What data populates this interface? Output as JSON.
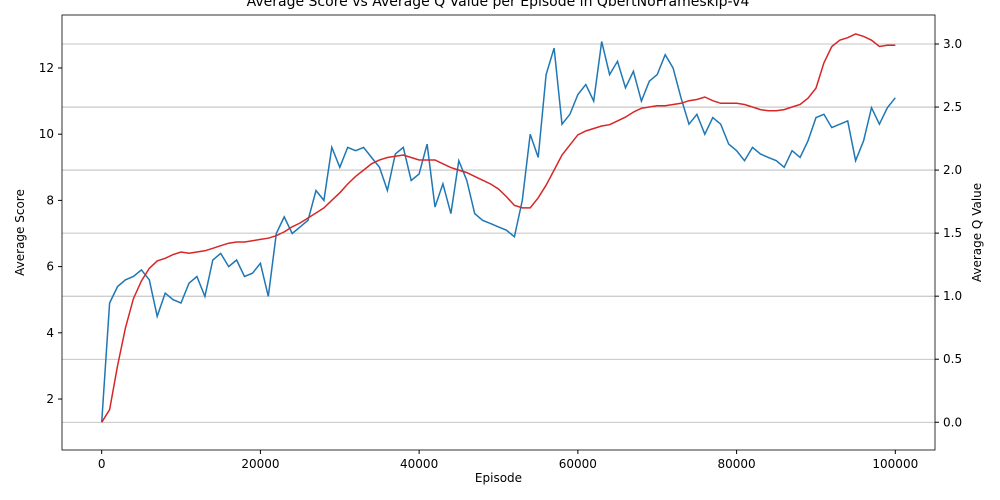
{
  "chart_data": {
    "type": "line",
    "title": "Average Score vs Average Q Value per Episode in QbertNoFrameskip-v4",
    "xlabel": "Episode",
    "ylabel": "Average Score",
    "y2label": "Average Q Value",
    "x": [
      0,
      1000,
      2000,
      3000,
      4000,
      5000,
      6000,
      7000,
      8000,
      9000,
      10000,
      11000,
      12000,
      13000,
      14000,
      15000,
      16000,
      17000,
      18000,
      19000,
      20000,
      21000,
      22000,
      23000,
      24000,
      25000,
      26000,
      27000,
      28000,
      29000,
      30000,
      31000,
      32000,
      33000,
      34000,
      35000,
      36000,
      37000,
      38000,
      39000,
      40000,
      41000,
      42000,
      43000,
      44000,
      45000,
      46000,
      47000,
      48000,
      49000,
      50000,
      51000,
      52000,
      53000,
      54000,
      55000,
      56000,
      57000,
      58000,
      59000,
      60000,
      61000,
      62000,
      63000,
      64000,
      65000,
      66000,
      67000,
      68000,
      69000,
      70000,
      71000,
      72000,
      73000,
      74000,
      75000,
      76000,
      77000,
      78000,
      79000,
      80000,
      81000,
      82000,
      83000,
      84000,
      85000,
      86000,
      87000,
      88000,
      89000,
      90000,
      91000,
      92000,
      93000,
      94000,
      95000,
      96000,
      97000,
      98000,
      99000,
      100000
    ],
    "series": [
      {
        "name": "Average Score",
        "color": "#1f77b4",
        "axis": "y",
        "values": [
          1.3,
          4.9,
          5.4,
          5.6,
          5.7,
          5.9,
          5.6,
          4.5,
          5.2,
          5.0,
          4.9,
          5.5,
          5.7,
          5.1,
          6.2,
          6.4,
          6.0,
          6.2,
          5.7,
          5.8,
          6.1,
          5.1,
          7.0,
          7.5,
          7.0,
          7.2,
          7.4,
          8.3,
          8.0,
          9.6,
          9.0,
          9.6,
          9.5,
          9.6,
          9.3,
          9.0,
          8.3,
          9.4,
          9.6,
          8.6,
          8.8,
          9.7,
          7.8,
          8.5,
          7.6,
          9.2,
          8.6,
          7.6,
          7.4,
          7.3,
          7.2,
          7.1,
          6.9,
          8.0,
          10.0,
          9.3,
          11.8,
          12.6,
          10.3,
          10.6,
          11.2,
          11.5,
          11.0,
          12.8,
          11.8,
          12.2,
          11.4,
          11.9,
          11.0,
          11.6,
          11.8,
          12.4,
          12.0,
          11.1,
          10.3,
          10.6,
          10.0,
          10.5,
          10.3,
          9.7,
          9.5,
          9.2,
          9.6,
          9.4,
          9.3,
          9.2,
          9.0,
          9.5,
          9.3,
          9.8,
          10.5,
          10.6,
          10.2,
          10.3,
          10.4,
          9.2,
          9.8,
          10.8,
          10.3,
          10.8,
          11.1
        ]
      },
      {
        "name": "Average Q Value",
        "color": "#d62728",
        "axis": "y2",
        "values": [
          0,
          0.1,
          0.45,
          0.75,
          0.98,
          1.12,
          1.22,
          1.28,
          1.3,
          1.33,
          1.35,
          1.34,
          1.35,
          1.36,
          1.38,
          1.4,
          1.42,
          1.43,
          1.43,
          1.44,
          1.45,
          1.46,
          1.48,
          1.51,
          1.55,
          1.58,
          1.62,
          1.66,
          1.7,
          1.76,
          1.82,
          1.89,
          1.95,
          2.0,
          2.05,
          2.08,
          2.1,
          2.11,
          2.12,
          2.1,
          2.08,
          2.08,
          2.08,
          2.05,
          2.02,
          2.0,
          1.98,
          1.95,
          1.92,
          1.89,
          1.85,
          1.79,
          1.72,
          1.7,
          1.7,
          1.78,
          1.88,
          2.0,
          2.12,
          2.2,
          2.28,
          2.31,
          2.33,
          2.35,
          2.36,
          2.39,
          2.42,
          2.46,
          2.49,
          2.5,
          2.51,
          2.51,
          2.52,
          2.53,
          2.55,
          2.56,
          2.58,
          2.55,
          2.53,
          2.53,
          2.53,
          2.52,
          2.5,
          2.48,
          2.47,
          2.47,
          2.48,
          2.5,
          2.52,
          2.57,
          2.65,
          2.85,
          2.98,
          3.03,
          3.05,
          3.08,
          3.06,
          3.03,
          2.98,
          2.99,
          2.99
        ]
      }
    ],
    "xlim": [
      -5000,
      105000
    ],
    "xticks": [
      0,
      20000,
      40000,
      60000,
      80000,
      100000
    ],
    "ylim": [
      0.46,
      13.6
    ],
    "yticks": [
      2,
      4,
      6,
      8,
      10,
      12
    ],
    "y2lim": [
      -0.22,
      3.23
    ],
    "y2ticks": [
      {
        "value": 0,
        "label": "0.0"
      },
      {
        "value": 0.5,
        "label": "0.5"
      },
      {
        "value": 1,
        "label": "1.0"
      },
      {
        "value": 1.5,
        "label": "1.5"
      },
      {
        "value": 2,
        "label": "2.0"
      },
      {
        "value": 2.5,
        "label": "2.5"
      },
      {
        "value": 3,
        "label": "3.0"
      }
    ],
    "grid": "y2"
  }
}
